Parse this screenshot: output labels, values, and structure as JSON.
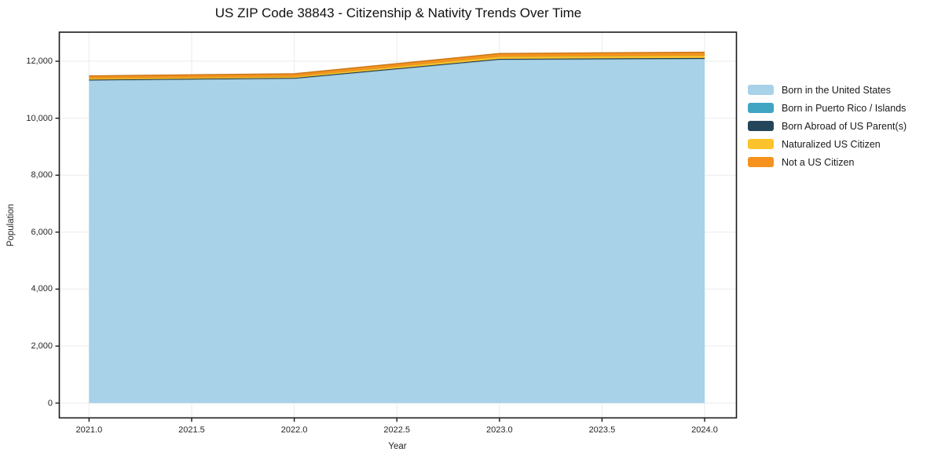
{
  "colors": {
    "grid": "#ebebeb",
    "frame": "#1a1a1a",
    "text": "#262626",
    "background": "#ffffff"
  },
  "chart_data": {
    "type": "area",
    "stacked": true,
    "title": "US ZIP Code 38843 - Citizenship & Nativity Trends Over Time",
    "xlabel": "Year",
    "ylabel": "Population",
    "x": [
      2021,
      2022,
      2023,
      2024
    ],
    "series": [
      {
        "name": "Born in the United States",
        "color": "#a8d2e8",
        "values": [
          11330,
          11390,
          12055,
          12085
        ]
      },
      {
        "name": "Born in Puerto Rico / Islands",
        "color": "#3fa5c2",
        "values": [
          0,
          0,
          0,
          0
        ]
      },
      {
        "name": "Born Abroad of US Parent(s)",
        "color": "#25465a",
        "values": [
          25,
          25,
          30,
          30
        ]
      },
      {
        "name": "Naturalized US Citizen",
        "color": "#fdc32c",
        "values": [
          45,
          55,
          85,
          95
        ]
      },
      {
        "name": "Not a US Citizen",
        "color": "#f6921e",
        "values": [
          85,
          90,
          100,
          105
        ]
      }
    ],
    "totals": [
      11485,
      11560,
      12270,
      12315
    ],
    "xticks": {
      "values": [
        2021.0,
        2021.5,
        2022.0,
        2022.5,
        2023.0,
        2023.5,
        2024.0
      ],
      "labels": [
        "2021.0",
        "2021.5",
        "2022.0",
        "2022.5",
        "2023.0",
        "2023.5",
        "2024.0"
      ]
    },
    "yticks": {
      "values": [
        0,
        2000,
        4000,
        6000,
        8000,
        10000,
        12000
      ],
      "labels": [
        "0",
        "2,000",
        "4,000",
        "6,000",
        "8,000",
        "10,000",
        "12,000"
      ]
    },
    "xlim": [
      2020.855,
      2024.155
    ],
    "ylim": [
      -520,
      13020
    ],
    "grid": true,
    "legend_position": "right-outside"
  }
}
